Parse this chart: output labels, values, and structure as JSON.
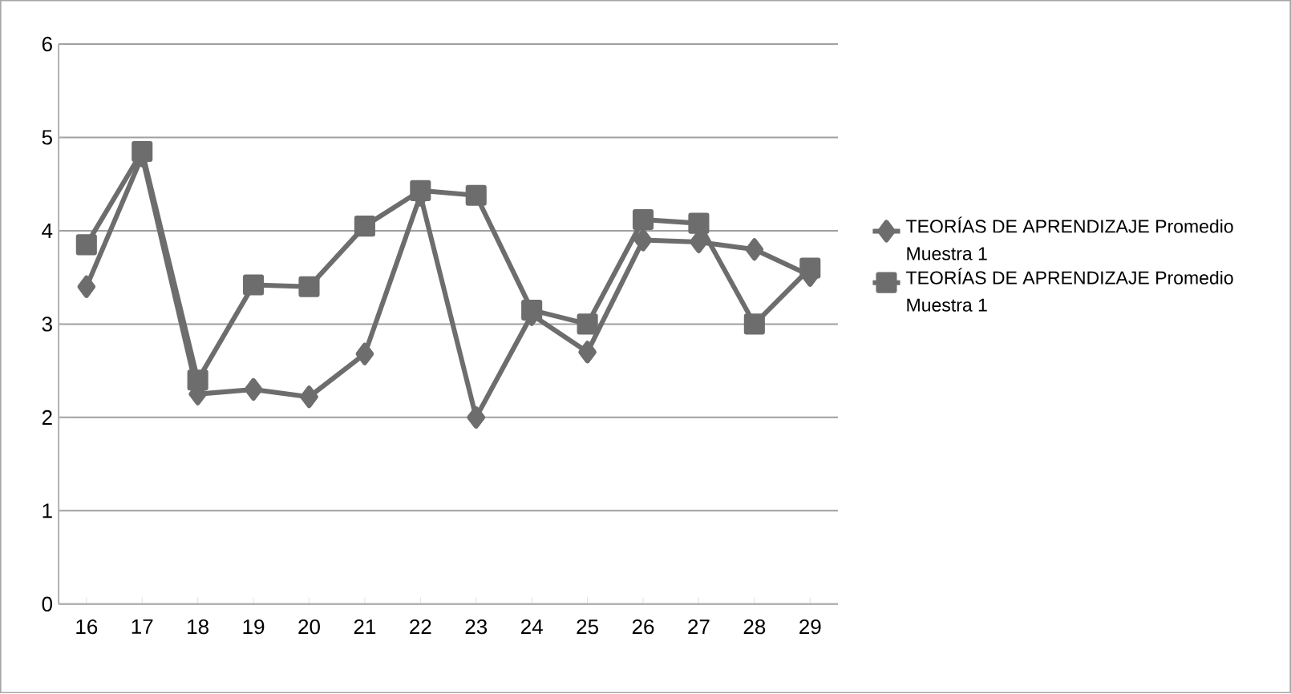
{
  "chart_data": {
    "type": "line",
    "categories": [
      "16",
      "17",
      "18",
      "19",
      "20",
      "21",
      "22",
      "23",
      "24",
      "25",
      "26",
      "27",
      "28",
      "29"
    ],
    "series": [
      {
        "name": "TEORÍAS DE APRENDIZAJE Promedio Muestra 1",
        "color": "#6d6d6d",
        "marker": "diamond",
        "values": [
          3.4,
          4.8,
          2.25,
          2.3,
          2.22,
          2.68,
          4.38,
          2.0,
          3.1,
          2.7,
          3.9,
          3.88,
          3.8,
          3.52
        ]
      },
      {
        "name": "TEORÍAS DE APRENDIZAJE Promedio Muestra 1",
        "color": "#6d6d6d",
        "marker": "square",
        "values": [
          3.85,
          4.85,
          2.4,
          3.42,
          3.4,
          4.05,
          4.43,
          4.38,
          3.15,
          3.0,
          4.12,
          4.08,
          3.0,
          3.6
        ]
      }
    ],
    "ylim": [
      0,
      6
    ],
    "yticks": [
      0,
      1,
      2,
      3,
      4,
      5,
      6
    ],
    "grid": "y",
    "legend": "right",
    "line_style": "solid"
  }
}
